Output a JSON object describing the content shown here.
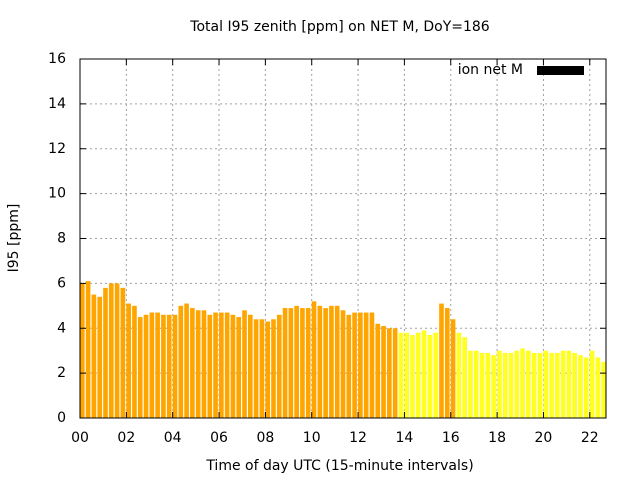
{
  "chart_data": {
    "type": "bar",
    "title": "Total I95 zenith [ppm] on NET M, DoY=186",
    "xlabel": "Time of day UTC (15-minute intervals)",
    "ylabel": "I95 [ppm]",
    "x": [
      0,
      0.25,
      0.5,
      0.75,
      1,
      1.25,
      1.5,
      1.75,
      2,
      2.25,
      2.5,
      2.75,
      3,
      3.25,
      3.5,
      3.75,
      4,
      4.25,
      4.5,
      4.75,
      5,
      5.25,
      5.5,
      5.75,
      6,
      6.25,
      6.5,
      6.75,
      7,
      7.25,
      7.5,
      7.75,
      8,
      8.25,
      8.5,
      8.75,
      9,
      9.25,
      9.5,
      9.75,
      10,
      10.25,
      10.5,
      10.75,
      11,
      11.25,
      11.5,
      11.75,
      12,
      12.25,
      12.5,
      12.75,
      13,
      13.25,
      13.5,
      13.75,
      14,
      14.25,
      14.5,
      14.75,
      15,
      15.25,
      15.5,
      15.75,
      16,
      16.25,
      16.5,
      16.75,
      17,
      17.25,
      17.5,
      17.75,
      18,
      18.25,
      18.5,
      18.75,
      19,
      19.25,
      19.5,
      19.75,
      20,
      20.25,
      20.5,
      20.75,
      21,
      21.25,
      21.5,
      21.75,
      22,
      22.25,
      22.5,
      22.75
    ],
    "series": [
      {
        "name": "ion net M",
        "color": "#000000",
        "values": [
          6.0,
          6.1,
          5.5,
          5.4,
          5.8,
          6.0,
          6.0,
          5.8,
          5.1,
          5.0,
          4.5,
          4.6,
          4.7,
          4.7,
          4.6,
          4.6,
          4.6,
          5.0,
          5.1,
          4.9,
          4.8,
          4.8,
          4.6,
          4.7,
          4.7,
          4.7,
          4.6,
          4.5,
          4.8,
          4.6,
          4.4,
          4.4,
          4.3,
          4.4,
          4.6,
          4.9,
          4.9,
          5.0,
          4.9,
          4.9,
          5.2,
          5.0,
          4.9,
          5.0,
          5.0,
          4.8,
          4.6,
          4.7,
          4.7,
          4.7,
          4.7,
          4.2,
          4.1,
          4.0,
          4.0,
          3.8,
          3.8,
          3.7,
          3.8,
          3.9,
          3.7,
          3.8,
          5.1,
          4.9,
          4.4,
          3.8,
          3.6,
          3.0,
          3.0,
          2.9,
          2.9,
          2.8,
          3.0,
          2.9,
          2.9,
          3.0,
          3.1,
          3.0,
          2.9,
          2.9,
          3.0,
          2.9,
          2.9,
          3.0,
          3.0,
          2.9,
          2.8,
          2.7,
          3.0,
          2.7,
          2.5,
          2.8
        ],
        "colors": [
          "#ffa500",
          "#ffa500",
          "#ffa500",
          "#ffa500",
          "#ffa500",
          "#ffa500",
          "#ffa500",
          "#ffa500",
          "#ffa500",
          "#ffa500",
          "#ffa500",
          "#ffa500",
          "#ffa500",
          "#ffa500",
          "#ffa500",
          "#ffa500",
          "#ffa500",
          "#ffa500",
          "#ffa500",
          "#ffa500",
          "#ffa500",
          "#ffa500",
          "#ffa500",
          "#ffa500",
          "#ffa500",
          "#ffa500",
          "#ffa500",
          "#ffa500",
          "#ffa500",
          "#ffa500",
          "#ffa500",
          "#ffa500",
          "#ffa500",
          "#ffa500",
          "#ffa500",
          "#ffa500",
          "#ffa500",
          "#ffa500",
          "#ffa500",
          "#ffa500",
          "#ffa500",
          "#ffa500",
          "#ffa500",
          "#ffa500",
          "#ffa500",
          "#ffa500",
          "#ffa500",
          "#ffa500",
          "#ffa500",
          "#ffa500",
          "#ffa500",
          "#ffa500",
          "#ffa500",
          "#ffa500",
          "#ffa500",
          "#ffff22",
          "#ffff22",
          "#ffff22",
          "#ffff22",
          "#ffff22",
          "#ffff22",
          "#ffff22",
          "#ffa500",
          "#ffa500",
          "#ffa500",
          "#ffff22",
          "#ffff22",
          "#ffff22",
          "#ffff22",
          "#ffff22",
          "#ffff22",
          "#ffff22",
          "#ffff22",
          "#ffff22",
          "#ffff22",
          "#ffff22",
          "#ffff22",
          "#ffff22",
          "#ffff22",
          "#ffff22",
          "#ffff22",
          "#ffff22",
          "#ffff22",
          "#ffff22",
          "#ffff22",
          "#ffff22",
          "#ffff22",
          "#ffff22",
          "#ffff22",
          "#ffff22",
          "#ffff22",
          "#ffff22"
        ]
      }
    ],
    "xlim": [
      0,
      22.7
    ],
    "ylim": [
      0,
      16
    ],
    "xticks": [
      {
        "value": 0,
        "label": "00"
      },
      {
        "value": 2,
        "label": "02"
      },
      {
        "value": 4,
        "label": "04"
      },
      {
        "value": 6,
        "label": "06"
      },
      {
        "value": 8,
        "label": "08"
      },
      {
        "value": 10,
        "label": "10"
      },
      {
        "value": 12,
        "label": "12"
      },
      {
        "value": 14,
        "label": "14"
      },
      {
        "value": 16,
        "label": "16"
      },
      {
        "value": 18,
        "label": "18"
      },
      {
        "value": 20,
        "label": "20"
      },
      {
        "value": 22,
        "label": "22"
      }
    ],
    "yticks": [
      0,
      2,
      4,
      6,
      8,
      10,
      12,
      14,
      16
    ],
    "grid": true,
    "legend": "top-right"
  }
}
